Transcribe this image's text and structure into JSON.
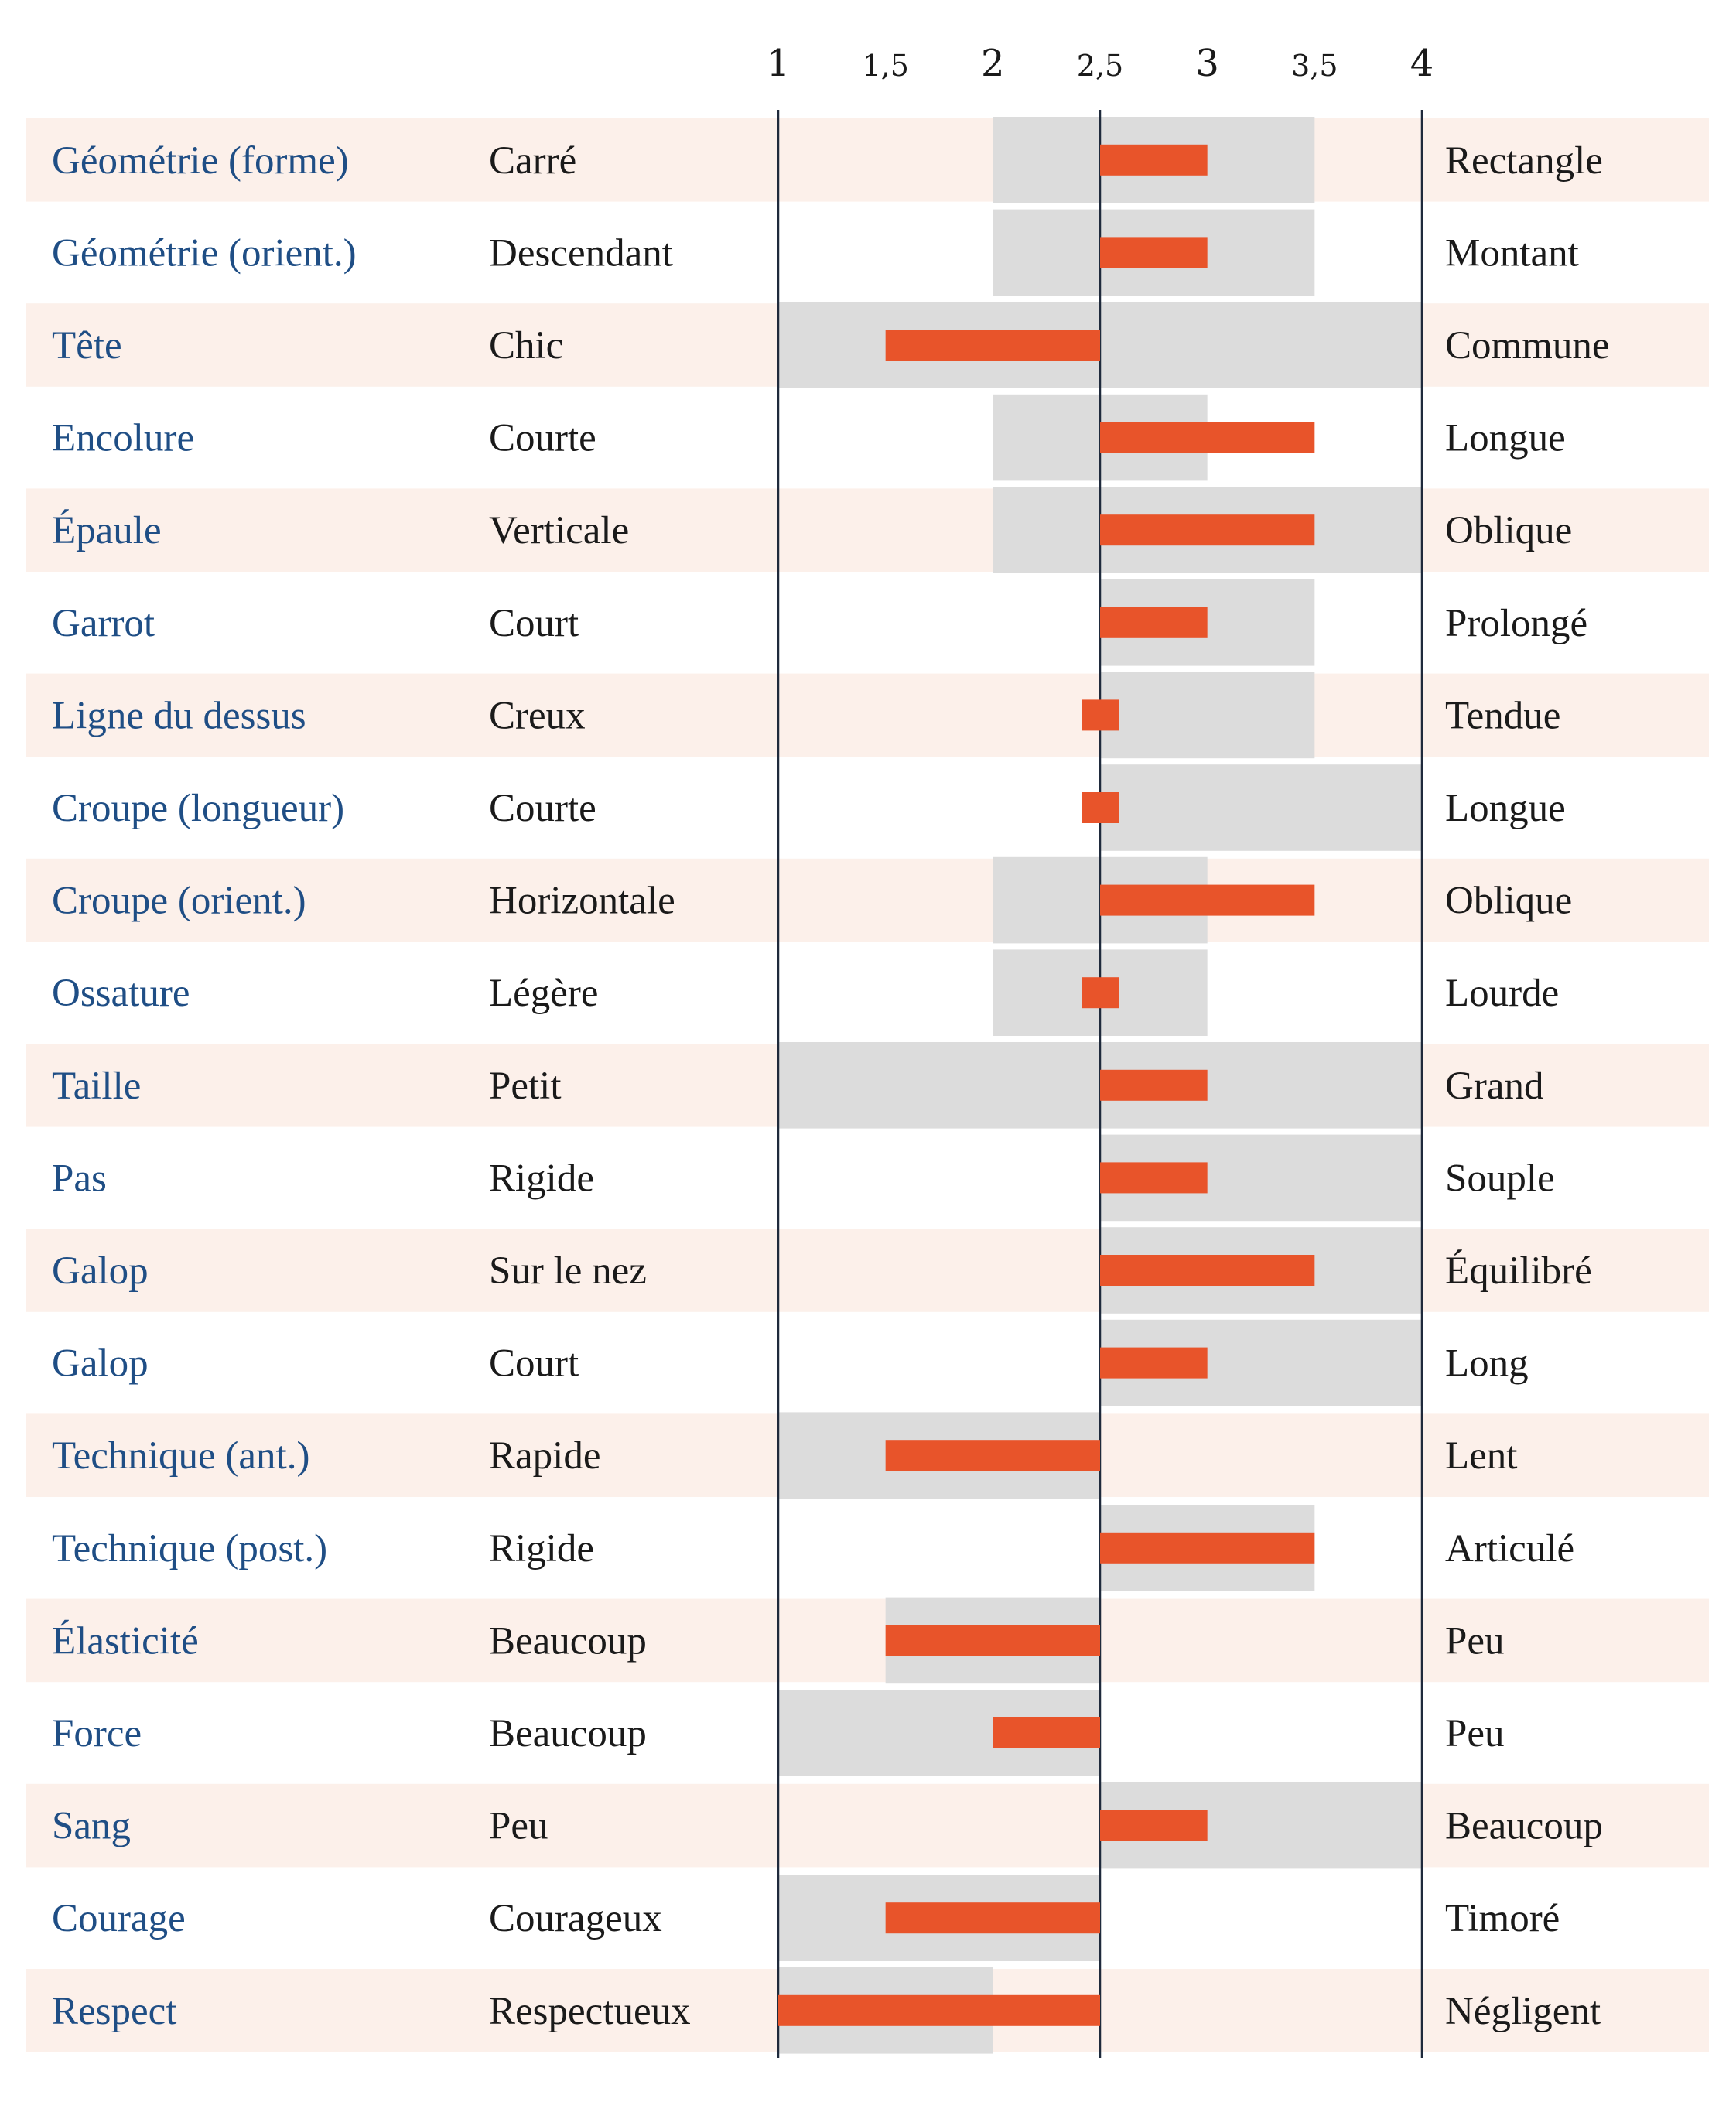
{
  "chart_data": {
    "type": "bar",
    "title": "",
    "xlabel": "",
    "ylabel": "",
    "xlim": [
      1,
      4
    ],
    "center": 2.5,
    "ticks": [
      "1",
      "1,5",
      "2",
      "2,5",
      "3",
      "3,5",
      "4"
    ],
    "tick_values": [
      1,
      1.5,
      2,
      2.5,
      3,
      3.5,
      4
    ],
    "grid": false,
    "colors": {
      "value_bar": "#e8542a",
      "range_band": "#dcdcdc",
      "row_stripe": "#fcf0ea",
      "attribute_text": "#1f4e85",
      "label_text": "#1a1a1a",
      "axis_line": "#1f2a3c"
    },
    "rows": [
      {
        "attribute": "Géométrie (forme)",
        "left": "Carré",
        "right": "Rectangle",
        "value": 3.0,
        "range": [
          2.0,
          3.5
        ]
      },
      {
        "attribute": "Géométrie (orient.)",
        "left": "Descendant",
        "right": "Montant",
        "value": 3.0,
        "range": [
          2.0,
          3.5
        ]
      },
      {
        "attribute": "Tête",
        "left": "Chic",
        "right": "Commune",
        "value": 1.5,
        "range": [
          1.0,
          4.0
        ]
      },
      {
        "attribute": "Encolure",
        "left": "Courte",
        "right": "Longue",
        "value": 3.5,
        "range": [
          2.0,
          3.0
        ]
      },
      {
        "attribute": "Épaule",
        "left": "Verticale",
        "right": "Oblique",
        "value": 3.5,
        "range": [
          2.0,
          4.0
        ]
      },
      {
        "attribute": "Garrot",
        "left": "Court",
        "right": "Prolongé",
        "value": 3.0,
        "range": [
          2.5,
          3.5
        ]
      },
      {
        "attribute": "Ligne du dessus",
        "left": "Creux",
        "right": "Tendue",
        "value": 2.5,
        "range": [
          2.5,
          3.5
        ]
      },
      {
        "attribute": "Croupe (longueur)",
        "left": "Courte",
        "right": "Longue",
        "value": 2.5,
        "range": [
          2.5,
          4.0
        ]
      },
      {
        "attribute": "Croupe (orient.)",
        "left": "Horizontale",
        "right": "Oblique",
        "value": 3.5,
        "range": [
          2.0,
          3.0
        ]
      },
      {
        "attribute": "Ossature",
        "left": "Légère",
        "right": "Lourde",
        "value": 2.5,
        "range": [
          2.0,
          3.0
        ]
      },
      {
        "attribute": "Taille",
        "left": "Petit",
        "right": "Grand",
        "value": 3.0,
        "range": [
          1.0,
          4.0
        ]
      },
      {
        "attribute": "Pas",
        "left": "Rigide",
        "right": "Souple",
        "value": 3.0,
        "range": [
          2.5,
          4.0
        ]
      },
      {
        "attribute": "Galop",
        "left": "Sur le nez",
        "right": "Équilibré",
        "value": 3.5,
        "range": [
          2.5,
          4.0
        ]
      },
      {
        "attribute": "Galop",
        "left": "Court",
        "right": "Long",
        "value": 3.0,
        "range": [
          2.5,
          4.0
        ]
      },
      {
        "attribute": "Technique (ant.)",
        "left": "Rapide",
        "right": "Lent",
        "value": 1.5,
        "range": [
          1.0,
          2.5
        ]
      },
      {
        "attribute": "Technique (post.)",
        "left": "Rigide",
        "right": "Articulé",
        "value": 3.5,
        "range": [
          2.5,
          3.5
        ]
      },
      {
        "attribute": "Élasticité",
        "left": "Beaucoup",
        "right": "Peu",
        "value": 1.5,
        "range": [
          1.5,
          2.5
        ]
      },
      {
        "attribute": "Force",
        "left": "Beaucoup",
        "right": "Peu",
        "value": 2.0,
        "range": [
          1.0,
          2.5
        ]
      },
      {
        "attribute": "Sang",
        "left": "Peu",
        "right": "Beaucoup",
        "value": 3.0,
        "range": [
          2.5,
          4.0
        ]
      },
      {
        "attribute": "Courage",
        "left": "Courageux",
        "right": "Timoré",
        "value": 1.5,
        "range": [
          1.0,
          2.5
        ]
      },
      {
        "attribute": "Respect",
        "left": "Respectueux",
        "right": "Négligent",
        "value": 1.0,
        "range": [
          1.0,
          2.0
        ]
      }
    ]
  }
}
